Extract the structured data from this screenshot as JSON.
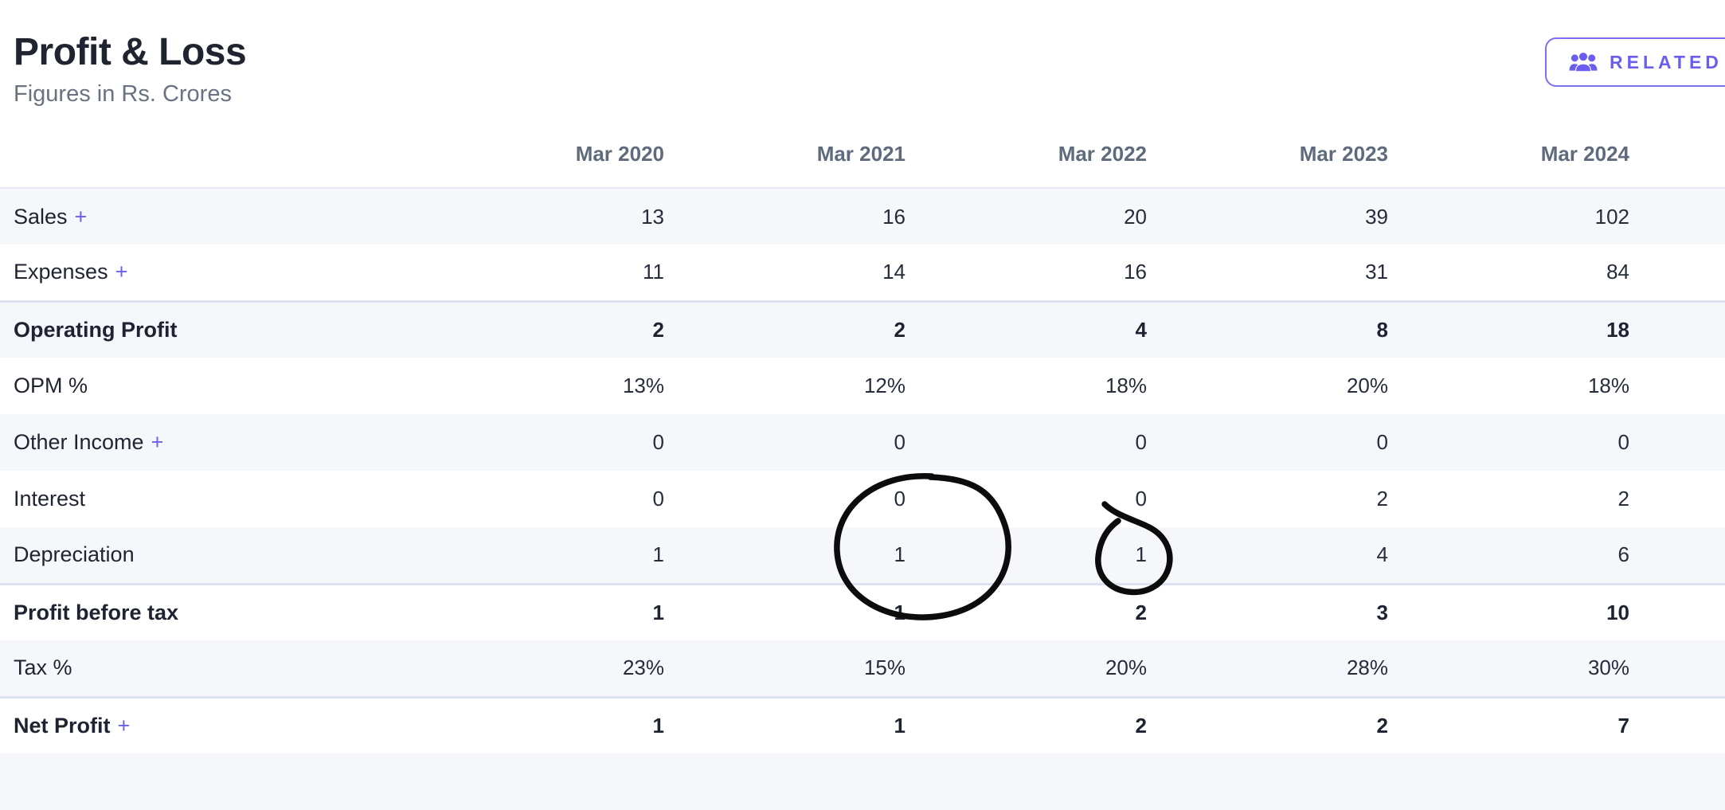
{
  "header": {
    "title": "Profit & Loss",
    "subtitle": "Figures in Rs. Crores",
    "related_button": {
      "label": "RELATED P",
      "icon": "users-icon",
      "note_visible_state": "clipped at right edge of screen"
    }
  },
  "table": {
    "columns": [
      "Mar 2020",
      "Mar 2021",
      "Mar 2022",
      "Mar 2023",
      "Mar 2024"
    ],
    "expand_symbol": "+",
    "rows": [
      {
        "label": "Sales",
        "expandable": true,
        "bold": false,
        "section_start": false,
        "values": [
          "13",
          "16",
          "20",
          "39",
          "102"
        ]
      },
      {
        "label": "Expenses",
        "expandable": true,
        "bold": false,
        "section_start": false,
        "values": [
          "11",
          "14",
          "16",
          "31",
          "84"
        ]
      },
      {
        "label": "Operating Profit",
        "expandable": false,
        "bold": true,
        "section_start": true,
        "values": [
          "2",
          "2",
          "4",
          "8",
          "18"
        ]
      },
      {
        "label": "OPM %",
        "expandable": false,
        "bold": false,
        "section_start": false,
        "values": [
          "13%",
          "12%",
          "18%",
          "20%",
          "18%"
        ]
      },
      {
        "label": "Other Income",
        "expandable": true,
        "bold": false,
        "section_start": false,
        "values": [
          "0",
          "0",
          "0",
          "0",
          "0"
        ]
      },
      {
        "label": "Interest",
        "expandable": false,
        "bold": false,
        "section_start": false,
        "values": [
          "0",
          "0",
          "0",
          "2",
          "2"
        ]
      },
      {
        "label": "Depreciation",
        "expandable": false,
        "bold": false,
        "section_start": false,
        "values": [
          "1",
          "1",
          "1",
          "4",
          "6"
        ]
      },
      {
        "label": "Profit before tax",
        "expandable": false,
        "bold": true,
        "section_start": true,
        "values": [
          "1",
          "1",
          "2",
          "3",
          "10"
        ]
      },
      {
        "label": "Tax %",
        "expandable": false,
        "bold": false,
        "section_start": false,
        "values": [
          "23%",
          "15%",
          "20%",
          "28%",
          "30%"
        ]
      },
      {
        "label": "Net Profit",
        "expandable": true,
        "bold": true,
        "section_start": true,
        "values": [
          "1",
          "1",
          "2",
          "2",
          "7"
        ]
      }
    ]
  },
  "annotations": {
    "ink_color": "#0c0c0c",
    "circles": [
      {
        "shape": "large-ellipse",
        "target_row": "Depreciation",
        "target_column": "Mar 2021",
        "target_value": "1"
      },
      {
        "shape": "small-loop",
        "target_row": "Depreciation",
        "target_column": "Mar 2022",
        "target_value": "1"
      }
    ]
  },
  "colors": {
    "accent_purple": "#6a5ef0",
    "button_border": "#7b70f1",
    "title_text": "#1f2430",
    "subtitle_text": "#687280",
    "column_header_text": "#5f6b7d",
    "cell_text": "#262c3b",
    "bold_cell_text": "#1d2330",
    "row_stripe": "#f6f7fb",
    "section_divider": "#dce2f0",
    "annotation_ink": "#0c0c0c"
  }
}
